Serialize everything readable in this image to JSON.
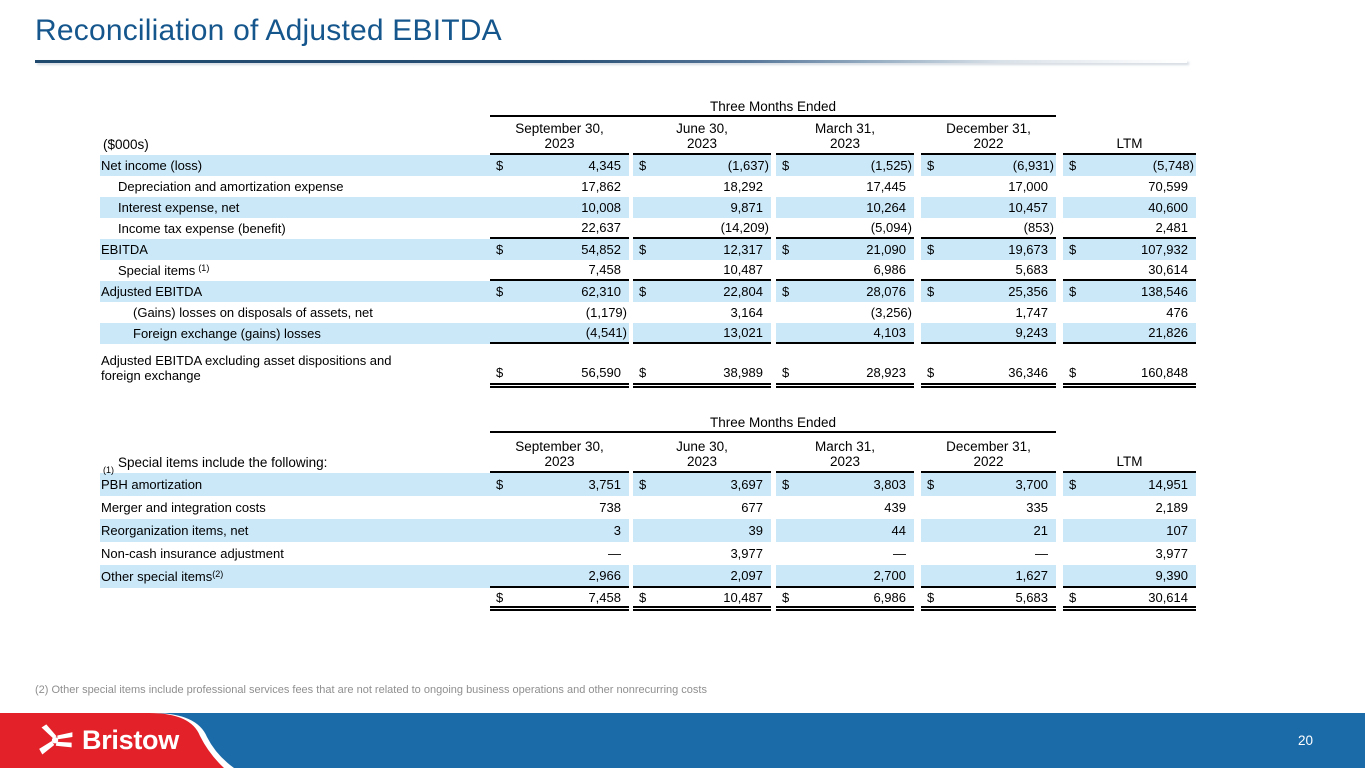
{
  "page": {
    "title": "Reconciliation of Adjusted EBITDA",
    "page_number": "20",
    "footnote": "(2) Other special items include professional services fees that are not related to ongoing business operations and other nonrecurring costs",
    "logo_text": "Bristow"
  },
  "colors": {
    "title_blue": "#15568d",
    "row_highlight": "#cbe8f9",
    "footer_blue": "#1c6ba9",
    "brand_red": "#e22128",
    "footnote_gray": "#8f8f8f"
  },
  "tables": [
    {
      "span_header": "Three Months Ended",
      "corner": {
        "sup": "",
        "text": "($000s)"
      },
      "columns": [
        {
          "lines": [
            "September 30,",
            "2023"
          ]
        },
        {
          "lines": [
            "June 30,",
            "2023"
          ]
        },
        {
          "lines": [
            "March 31,",
            "2023"
          ]
        },
        {
          "lines": [
            "December 31,",
            "2022"
          ]
        },
        {
          "lines": [
            "LTM"
          ]
        }
      ],
      "rows": [
        {
          "label": "Net income (loss)",
          "indent": 0,
          "dollar": true,
          "shaded": true,
          "values": [
            "4,345",
            "(1,637)",
            "(1,525)",
            "(6,931)",
            "(5,748)"
          ]
        },
        {
          "label": "Depreciation and amortization expense",
          "indent": 1,
          "shaded": false,
          "values": [
            "17,862",
            "18,292",
            "17,445",
            "17,000",
            "70,599"
          ]
        },
        {
          "label": "Interest expense, net",
          "indent": 1,
          "shaded": true,
          "values": [
            "10,008",
            "9,871",
            "10,264",
            "10,457",
            "40,600"
          ]
        },
        {
          "label": "Income tax expense (benefit)",
          "indent": 1,
          "shaded": false,
          "rule_below": true,
          "values": [
            "22,637",
            "(14,209)",
            "(5,094)",
            "(853)",
            "2,481"
          ]
        },
        {
          "label": "EBITDA",
          "indent": 0,
          "dollar": true,
          "shaded": true,
          "values": [
            "54,852",
            "12,317",
            "21,090",
            "19,673",
            "107,932"
          ]
        },
        {
          "label": "Special items",
          "sup": "(1)",
          "sup_space": true,
          "indent": 1,
          "shaded": false,
          "rule_below": true,
          "values": [
            "7,458",
            "10,487",
            "6,986",
            "5,683",
            "30,614"
          ]
        },
        {
          "label": "Adjusted EBITDA",
          "indent": 0,
          "dollar": true,
          "shaded": true,
          "values": [
            "62,310",
            "22,804",
            "28,076",
            "25,356",
            "138,546"
          ]
        },
        {
          "label": "(Gains) losses on disposals of assets, net",
          "indent": 2,
          "shaded": false,
          "values": [
            "(1,179)",
            "3,164",
            "(3,256)",
            "1,747",
            "476"
          ]
        },
        {
          "label": "Foreign exchange (gains) losses",
          "indent": 2,
          "shaded": true,
          "rule_below": true,
          "values": [
            "(4,541)",
            "13,021",
            "4,103",
            "9,243",
            "21,826"
          ]
        },
        {
          "label": "Adjusted EBITDA excluding asset dispositions and\nforeign exchange",
          "indent": 0,
          "dollar": true,
          "shaded": false,
          "tall": true,
          "double_below": true,
          "values": [
            "56,590",
            "38,989",
            "28,923",
            "36,346",
            "160,848"
          ]
        }
      ]
    },
    {
      "span_header": "Three Months Ended",
      "corner": {
        "sup": "(1)",
        "text": "Special items include the following:"
      },
      "columns": [
        {
          "lines": [
            "September 30,",
            "2023"
          ]
        },
        {
          "lines": [
            "June 30,",
            "2023"
          ]
        },
        {
          "lines": [
            "March 31,",
            "2023"
          ]
        },
        {
          "lines": [
            "December 31,",
            "2022"
          ]
        },
        {
          "lines": [
            "LTM"
          ]
        }
      ],
      "rows": [
        {
          "label": "PBH amortization",
          "indent": 0,
          "dollar": true,
          "shaded": true,
          "values": [
            "3,751",
            "3,697",
            "3,803",
            "3,700",
            "14,951"
          ]
        },
        {
          "label": "Merger and integration costs",
          "indent": 0,
          "shaded": false,
          "values": [
            "738",
            "677",
            "439",
            "335",
            "2,189"
          ]
        },
        {
          "label": "Reorganization items, net",
          "indent": 0,
          "shaded": true,
          "values": [
            "3",
            "39",
            "44",
            "21",
            "107"
          ]
        },
        {
          "label": "Non-cash insurance adjustment",
          "indent": 0,
          "shaded": false,
          "values": [
            "—",
            "3,977",
            "—",
            "—",
            "3,977"
          ]
        },
        {
          "label": "Other special items",
          "sup": "(2)",
          "indent": 0,
          "shaded": true,
          "rule_below": true,
          "values": [
            "2,966",
            "2,097",
            "2,700",
            "1,627",
            "9,390"
          ]
        },
        {
          "label": "",
          "indent": 0,
          "dollar": true,
          "shaded": false,
          "double_below": true,
          "values": [
            "7,458",
            "10,487",
            "6,986",
            "5,683",
            "30,614"
          ]
        }
      ]
    }
  ]
}
